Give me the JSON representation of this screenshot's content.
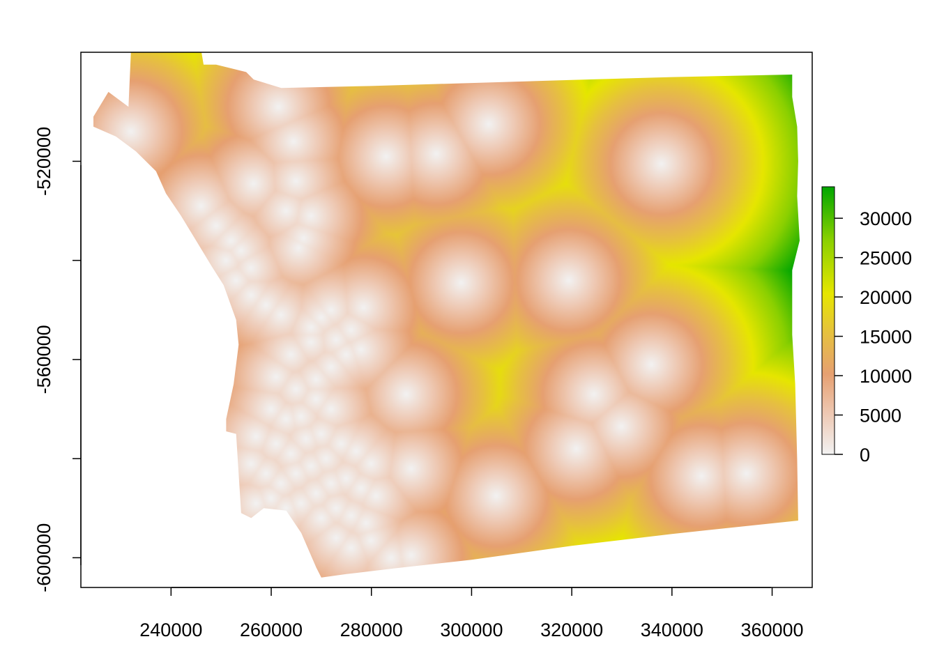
{
  "chart_data": {
    "type": "heatmap",
    "title": "",
    "xlabel": "",
    "ylabel": "",
    "xlim": [
      222000,
      368000
    ],
    "ylim": [
      -606000,
      -498000
    ],
    "x_ticks": [
      240000,
      260000,
      280000,
      300000,
      320000,
      340000,
      360000
    ],
    "x_tick_labels": [
      "240000",
      "260000",
      "280000",
      "300000",
      "320000",
      "340000",
      "360000"
    ],
    "y_ticks": [
      -520000,
      -540000,
      -560000,
      -580000,
      -600000
    ],
    "y_tick_labels": [
      "-520000",
      "",
      "-560000",
      "",
      "-600000"
    ],
    "colorbar": {
      "min": 0,
      "max": 34000,
      "ticks": [
        0,
        5000,
        10000,
        15000,
        20000,
        25000,
        30000
      ],
      "tick_labels": [
        "0",
        "5000",
        "10000",
        "15000",
        "20000",
        "25000",
        "30000"
      ],
      "colors": [
        "#f2f2f2",
        "#eec9b4",
        "#e6a071",
        "#e6c040",
        "#e6e600",
        "#8bd000",
        "#00a600"
      ]
    },
    "boundary": [
      [
        231500,
        -509000
      ],
      [
        232000,
        -498000
      ],
      [
        237000,
        -498000
      ],
      [
        241000,
        -497500
      ],
      [
        246000,
        -497500
      ],
      [
        246500,
        -500500
      ],
      [
        249000,
        -500500
      ],
      [
        255000,
        -502000
      ],
      [
        256500,
        -503500
      ],
      [
        262000,
        -505200
      ],
      [
        280000,
        -504800
      ],
      [
        300000,
        -504200
      ],
      [
        320000,
        -503600
      ],
      [
        340000,
        -503000
      ],
      [
        364000,
        -502500
      ],
      [
        364000,
        -507000
      ],
      [
        365000,
        -513000
      ],
      [
        365200,
        -520000
      ],
      [
        365000,
        -527000
      ],
      [
        365500,
        -536000
      ],
      [
        364000,
        -542000
      ],
      [
        364000,
        -555000
      ],
      [
        364600,
        -565000
      ],
      [
        365000,
        -580000
      ],
      [
        365200,
        -592500
      ],
      [
        340000,
        -595200
      ],
      [
        320000,
        -597600
      ],
      [
        300000,
        -600400
      ],
      [
        285000,
        -602100
      ],
      [
        275000,
        -603300
      ],
      [
        270000,
        -604000
      ],
      [
        269000,
        -602000
      ],
      [
        266000,
        -595000
      ],
      [
        263000,
        -590500
      ],
      [
        258500,
        -590000
      ],
      [
        256000,
        -592000
      ],
      [
        254000,
        -591000
      ],
      [
        253500,
        -583000
      ],
      [
        253000,
        -575000
      ],
      [
        251000,
        -574500
      ],
      [
        251000,
        -572000
      ],
      [
        252500,
        -565000
      ],
      [
        253500,
        -557000
      ],
      [
        253000,
        -552000
      ],
      [
        250500,
        -545000
      ],
      [
        248000,
        -541000
      ],
      [
        245000,
        -536000
      ],
      [
        242000,
        -531000
      ],
      [
        239000,
        -526500
      ],
      [
        237000,
        -522000
      ],
      [
        233000,
        -518000
      ],
      [
        229000,
        -515000
      ],
      [
        224500,
        -513000
      ],
      [
        224500,
        -511000
      ],
      [
        227500,
        -506000
      ]
    ],
    "sources": [
      [
        232000,
        -514000
      ],
      [
        246000,
        -529000
      ],
      [
        256500,
        -524500
      ],
      [
        261500,
        -509000
      ],
      [
        264500,
        -516000
      ],
      [
        265000,
        -524000
      ],
      [
        266500,
        -535500
      ],
      [
        268000,
        -531000
      ],
      [
        263000,
        -530000
      ],
      [
        249000,
        -533000
      ],
      [
        252000,
        -536000
      ],
      [
        254000,
        -538000
      ],
      [
        251000,
        -540000
      ],
      [
        256000,
        -541500
      ],
      [
        253000,
        -544000
      ],
      [
        256000,
        -547000
      ],
      [
        259000,
        -549000
      ],
      [
        262000,
        -551000
      ],
      [
        265500,
        -537500
      ],
      [
        268000,
        -553500
      ],
      [
        270000,
        -551500
      ],
      [
        273000,
        -556000
      ],
      [
        272000,
        -550000
      ],
      [
        276000,
        -554000
      ],
      [
        278500,
        -549500
      ],
      [
        264000,
        -559000
      ],
      [
        268000,
        -556500
      ],
      [
        261000,
        -563500
      ],
      [
        265000,
        -566000
      ],
      [
        269000,
        -564000
      ],
      [
        272000,
        -561500
      ],
      [
        275000,
        -559000
      ],
      [
        278000,
        -558000
      ],
      [
        260000,
        -570000
      ],
      [
        263000,
        -572000
      ],
      [
        266000,
        -571500
      ],
      [
        269000,
        -568000
      ],
      [
        272000,
        -570000
      ],
      [
        257000,
        -575500
      ],
      [
        261000,
        -577000
      ],
      [
        264000,
        -579000
      ],
      [
        267000,
        -576000
      ],
      [
        270000,
        -575000
      ],
      [
        256000,
        -581000
      ],
      [
        259000,
        -583000
      ],
      [
        262000,
        -585000
      ],
      [
        265000,
        -583000
      ],
      [
        268000,
        -581500
      ],
      [
        271000,
        -580000
      ],
      [
        274000,
        -577000
      ],
      [
        277000,
        -578500
      ],
      [
        280000,
        -581000
      ],
      [
        257000,
        -589000
      ],
      [
        260000,
        -588000
      ],
      [
        263000,
        -590000
      ],
      [
        266000,
        -589000
      ],
      [
        269000,
        -587000
      ],
      [
        272000,
        -585000
      ],
      [
        275000,
        -584000
      ],
      [
        278000,
        -586000
      ],
      [
        281000,
        -587500
      ],
      [
        270000,
        -592000
      ],
      [
        273000,
        -590000
      ],
      [
        276000,
        -591500
      ],
      [
        279000,
        -593000
      ],
      [
        273000,
        -596000
      ],
      [
        276000,
        -598000
      ],
      [
        280000,
        -596500
      ],
      [
        284000,
        -600000
      ],
      [
        288000,
        -599500
      ],
      [
        283000,
        -519000
      ],
      [
        293000,
        -518500
      ],
      [
        303500,
        -512500
      ],
      [
        298000,
        -544500
      ],
      [
        319500,
        -544000
      ],
      [
        338000,
        -520500
      ],
      [
        287000,
        -567000
      ],
      [
        288000,
        -582000
      ],
      [
        305000,
        -587500
      ],
      [
        321000,
        -578000
      ],
      [
        324500,
        -567000
      ],
      [
        330000,
        -573500
      ],
      [
        336000,
        -561000
      ],
      [
        346000,
        -583500
      ],
      [
        355000,
        -583000
      ]
    ]
  }
}
